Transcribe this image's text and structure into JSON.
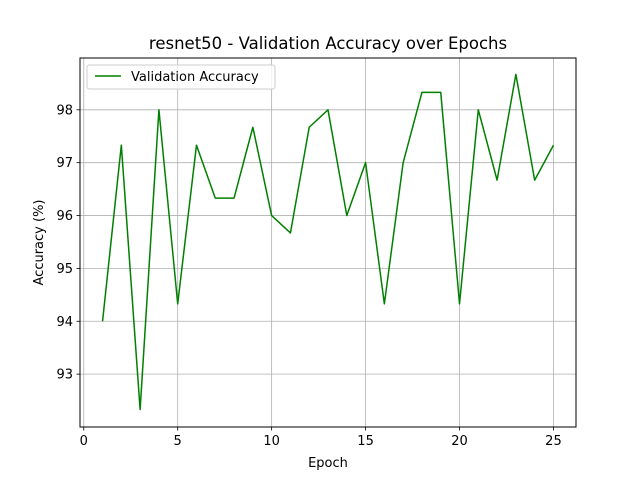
{
  "chart_data": {
    "type": "line",
    "title": "resnet50 - Validation Accuracy over Epochs",
    "xlabel": "Epoch",
    "ylabel": "Accuracy (%)",
    "xlim": [
      -0.2,
      26.2
    ],
    "ylim": [
      92.0,
      98.98
    ],
    "xticks": [
      0,
      5,
      10,
      15,
      20,
      25
    ],
    "yticks": [
      93,
      94,
      95,
      96,
      97,
      98
    ],
    "grid": true,
    "legend_position": "upper left",
    "series": [
      {
        "name": "Validation Accuracy",
        "color": "#008000",
        "x": [
          1,
          2,
          3,
          4,
          5,
          6,
          7,
          8,
          9,
          10,
          11,
          12,
          13,
          14,
          15,
          16,
          17,
          18,
          19,
          20,
          21,
          22,
          23,
          24,
          25
        ],
        "y": [
          94.0,
          97.33,
          92.33,
          98.0,
          94.33,
          97.33,
          96.33,
          96.33,
          97.67,
          96.0,
          95.67,
          97.67,
          98.0,
          96.0,
          97.0,
          94.33,
          97.0,
          98.33,
          98.33,
          94.33,
          98.0,
          96.67,
          98.67,
          96.67,
          97.33
        ]
      }
    ]
  }
}
